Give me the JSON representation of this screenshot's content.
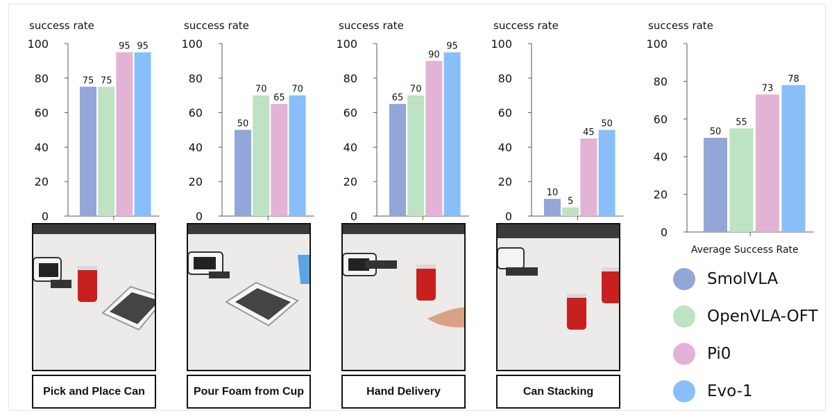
{
  "colors": {
    "SmolVLA": "#93a6d8",
    "OpenVLA-OFT": "#bde3c2",
    "Pi0": "#e3b3d6",
    "Evo-1": "#88bff9"
  },
  "legend": [
    {
      "label": "SmolVLA",
      "color": "#93a6d8"
    },
    {
      "label": "OpenVLA-OFT",
      "color": "#bde3c2"
    },
    {
      "label": "Pi0",
      "color": "#e3b3d6"
    },
    {
      "label": "Evo-1",
      "color": "#88bff9"
    }
  ],
  "tasks": [
    {
      "label": "Pick and Place Can",
      "icon": "robot-arm-can-basket-photo"
    },
    {
      "label": "Pour Foam from Cup",
      "icon": "robot-arm-cup-basket-photo"
    },
    {
      "label": "Hand Delivery",
      "icon": "robot-arm-can-hand-photo"
    },
    {
      "label": "Can Stacking",
      "icon": "robot-arm-two-cans-photo"
    }
  ],
  "chart_data": [
    {
      "type": "bar",
      "title": "",
      "ylabel": "success rate",
      "xlabel": "",
      "categories": [
        "SmolVLA",
        "OpenVLA-OFT",
        "Pi0",
        "Evo-1"
      ],
      "values": [
        75,
        75,
        95,
        95
      ],
      "data_labels": [
        "75",
        "75",
        "95",
        "95"
      ],
      "ylim": [
        0,
        100
      ],
      "yticks": [
        0,
        20,
        40,
        60,
        80,
        100
      ]
    },
    {
      "type": "bar",
      "title": "",
      "ylabel": "success rate",
      "xlabel": "",
      "categories": [
        "SmolVLA",
        "OpenVLA-OFT",
        "Pi0",
        "Evo-1"
      ],
      "values": [
        50,
        70,
        65,
        70
      ],
      "data_labels": [
        "50",
        "70",
        "65",
        "70"
      ],
      "ylim": [
        0,
        100
      ],
      "yticks": [
        0,
        20,
        40,
        60,
        80,
        100
      ]
    },
    {
      "type": "bar",
      "title": "",
      "ylabel": "success rate",
      "xlabel": "",
      "categories": [
        "SmolVLA",
        "OpenVLA-OFT",
        "Pi0",
        "Evo-1"
      ],
      "values": [
        65,
        70,
        90,
        95
      ],
      "data_labels": [
        "65",
        "70",
        "90",
        "95"
      ],
      "ylim": [
        0,
        100
      ],
      "yticks": [
        0,
        20,
        40,
        60,
        80,
        100
      ]
    },
    {
      "type": "bar",
      "title": "",
      "ylabel": "success rate",
      "xlabel": "",
      "categories": [
        "SmolVLA",
        "OpenVLA-OFT",
        "Pi0",
        "Evo-1"
      ],
      "values": [
        10,
        5,
        45,
        50
      ],
      "data_labels": [
        "10",
        "5",
        "45",
        "50"
      ],
      "ylim": [
        0,
        100
      ],
      "yticks": [
        0,
        20,
        40,
        60,
        80,
        100
      ]
    },
    {
      "type": "bar",
      "title": "",
      "ylabel": "success rate",
      "xlabel": "Average Success Rate",
      "categories": [
        "SmolVLA",
        "OpenVLA-OFT",
        "Pi0",
        "Evo-1"
      ],
      "values": [
        50,
        55,
        73,
        78
      ],
      "data_labels": [
        "50",
        "55",
        "73",
        "78"
      ],
      "ylim": [
        0,
        100
      ],
      "yticks": [
        0,
        20,
        40,
        60,
        80,
        100
      ]
    }
  ]
}
